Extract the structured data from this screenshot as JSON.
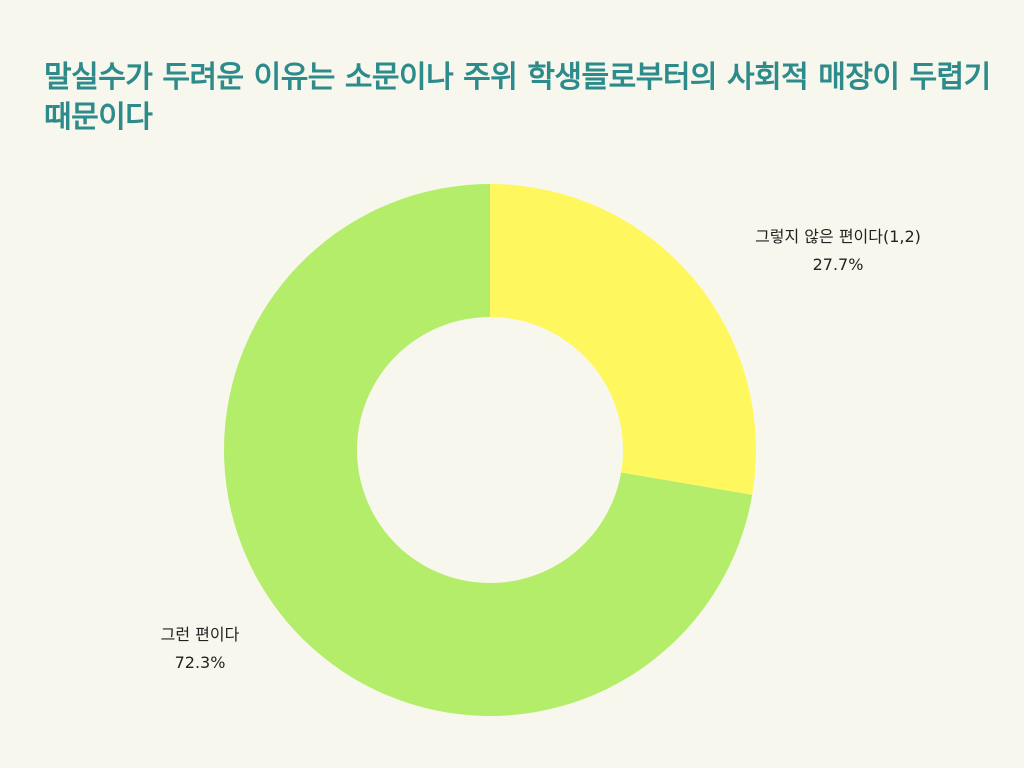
{
  "title": "말실수가 두려운 이유는 소문이나 주위 학생들로부터의 사회적 매장이 두렵기 때문이다",
  "colors": {
    "background": "#f8f7ed",
    "title": "#2e8b8b",
    "label_text": "#222222"
  },
  "chart_data": {
    "type": "pie",
    "donut": true,
    "start_angle_deg": 0,
    "direction": "clockwise",
    "slices": [
      {
        "label": "그렇지 않은 편이다(1,2)",
        "value": 27.7,
        "value_label": "27.7%",
        "color": "#fff75e"
      },
      {
        "label": "그런 편이다",
        "value": 72.3,
        "value_label": "72.3%",
        "color": "#b4ed6a"
      }
    ]
  }
}
